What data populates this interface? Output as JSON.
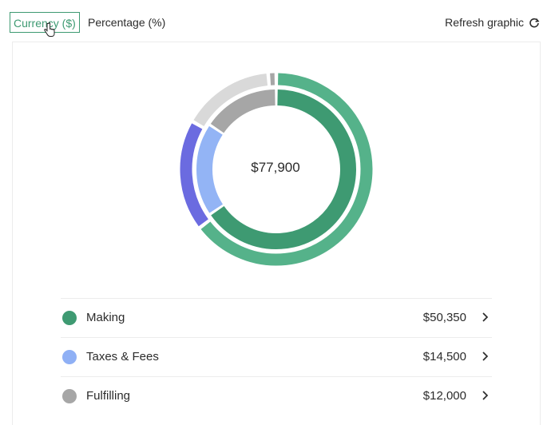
{
  "toolbar": {
    "currency_tab": "Currency ($)",
    "percentage_tab": "Percentage (%)",
    "refresh_label": "Refresh graphic"
  },
  "chart_data": {
    "type": "pie",
    "total_label": "$77,900",
    "series": [
      {
        "ring": "outer",
        "values": [
          50350,
          14500,
          12000,
          1050
        ],
        "colors": [
          "#55b28a",
          "#6b6be0",
          "#d9d9d9",
          "#a6a6a6"
        ]
      },
      {
        "ring": "inner",
        "values": [
          50350,
          14500,
          12000
        ],
        "colors": [
          "#3e9a72",
          "#93b4f5",
          "#a6a6a6"
        ]
      }
    ]
  },
  "legend": {
    "items": [
      {
        "label": "Making",
        "value": "$50,350",
        "color": "#3e9a72"
      },
      {
        "label": "Taxes & Fees",
        "value": "$14,500",
        "color": "#8fb0f5"
      },
      {
        "label": "Fulfilling",
        "value": "$12,000",
        "color": "#a6a6a6"
      }
    ]
  },
  "colors": {
    "accent": "#3e9a72"
  }
}
